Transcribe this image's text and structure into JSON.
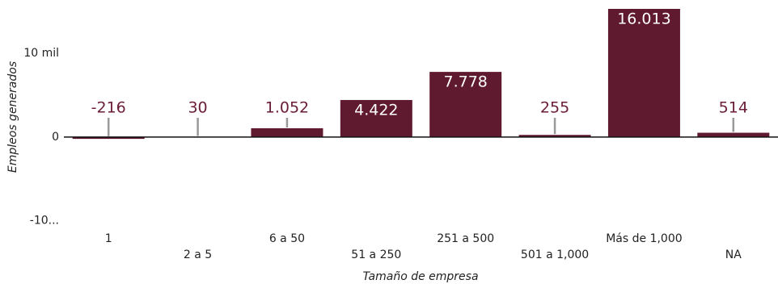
{
  "chart_data": {
    "type": "bar",
    "xlabel": "Tamaño de empresa",
    "ylabel": "Empleos generados",
    "categories": [
      "1",
      "2 a 5",
      "6 a 50",
      "51 a 250",
      "251 a 500",
      "501 a 1,000",
      "Más de 1,000",
      "NA"
    ],
    "values": [
      -216,
      30,
      1052,
      4422,
      7778,
      255,
      16013,
      514
    ],
    "value_labels": [
      "-216",
      "30",
      "1.052",
      "4.422",
      "7.778",
      "255",
      "16.013",
      "514"
    ],
    "color": "#5f1a2f",
    "ylim": [
      -10800,
      15300
    ],
    "yticks": [
      {
        "value": -10000,
        "label": "-10..."
      },
      0,
      {
        "value": 10000,
        "label": "10 mil"
      }
    ]
  }
}
